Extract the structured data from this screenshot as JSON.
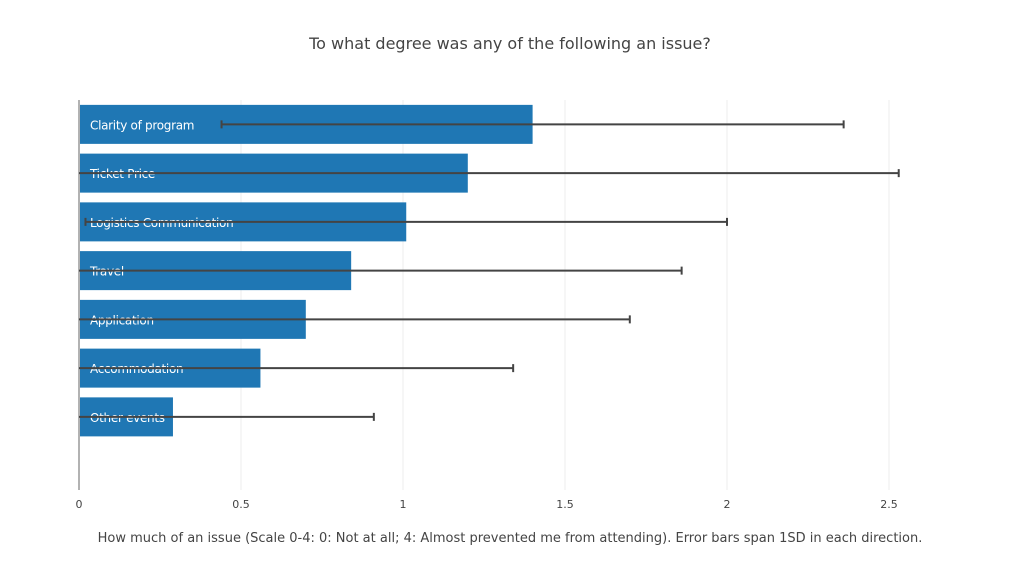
{
  "chart_data": {
    "type": "bar",
    "orientation": "horizontal",
    "title": "To what degree was any of the following an issue?",
    "xlabel": "How much of an issue (Scale 0-4: 0: Not at all; 4: Almost prevented me from attending). Error bars span 1SD in each direction.",
    "ylabel": "",
    "xlim": [
      0,
      2.65
    ],
    "xticks": [
      "0",
      "0.5",
      "1",
      "1.5",
      "2",
      "2.5"
    ],
    "grid": true,
    "bar_color": "#1f77b4",
    "error_color": "#444444",
    "categories": [
      "Clarity of program",
      "Ticket Price",
      "Logistics Communication",
      "Travel",
      "Application",
      "Accommodation",
      "Other events"
    ],
    "values": [
      1.4,
      1.2,
      1.01,
      0.84,
      0.7,
      0.56,
      0.29
    ],
    "error_sd": [
      0.96,
      1.33,
      0.99,
      1.02,
      1.0,
      0.78,
      0.62
    ]
  }
}
